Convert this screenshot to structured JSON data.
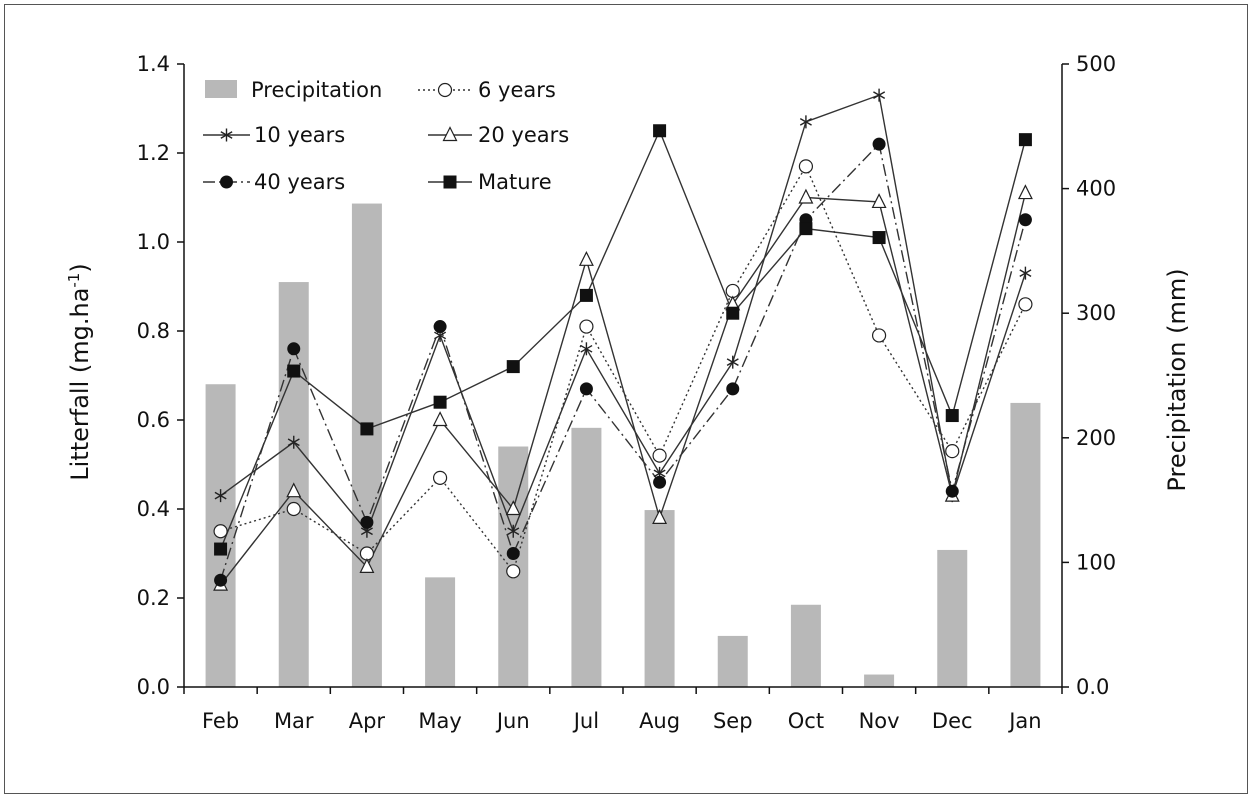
{
  "chart_data": {
    "type": "bar+line",
    "categories": [
      "Feb",
      "Mar",
      "Apr",
      "May",
      "Jun",
      "Jul",
      "Aug",
      "Sep",
      "Oct",
      "Nov",
      "Dec",
      "Jan"
    ],
    "bar_series": {
      "name": "Precipitation",
      "axis": "right",
      "color": "#b8b8b8",
      "values": [
        243,
        325,
        388,
        88,
        193,
        208,
        142,
        41,
        66,
        10,
        110,
        228
      ]
    },
    "series": [
      {
        "name": "6 years",
        "marker": "open-circle",
        "dash": "2,3",
        "values": [
          0.35,
          0.4,
          0.3,
          0.47,
          0.26,
          0.81,
          0.52,
          0.89,
          1.17,
          0.79,
          0.53,
          0.86
        ]
      },
      {
        "name": "10 years",
        "marker": "asterisk",
        "dash": "",
        "values": [
          0.43,
          0.55,
          0.35,
          0.79,
          0.35,
          0.76,
          0.48,
          0.73,
          1.27,
          1.33,
          0.43,
          0.93
        ]
      },
      {
        "name": "20 years",
        "marker": "open-triangle",
        "dash": "",
        "values": [
          0.23,
          0.44,
          0.27,
          0.6,
          0.4,
          0.96,
          0.38,
          0.86,
          1.1,
          1.09,
          0.43,
          1.11
        ]
      },
      {
        "name": "40 years",
        "marker": "filled-circle",
        "dash": "12,4,2,4",
        "values": [
          0.24,
          0.76,
          0.37,
          0.81,
          0.3,
          0.67,
          0.46,
          0.67,
          1.05,
          1.22,
          0.44,
          1.05
        ]
      },
      {
        "name": "Mature",
        "marker": "filled-square",
        "dash": "",
        "values": [
          0.31,
          0.71,
          0.58,
          0.64,
          0.72,
          0.88,
          1.25,
          0.84,
          1.03,
          1.01,
          0.61,
          1.23
        ]
      }
    ],
    "ylabel_left": "Litterfall (mg.ha-1)",
    "ylabel_left_base": "Litterfall (mg.ha",
    "ylabel_left_sup": "-1",
    "ylabel_left_end": ")",
    "ylabel_right": "Precipitation (mm)",
    "ylim_left": [
      0,
      1.4
    ],
    "ylim_right": [
      0,
      500
    ],
    "yticks_left": [
      "0.0",
      "0.2",
      "0.4",
      "0.6",
      "0.8",
      "1.0",
      "1.2",
      "1.4"
    ],
    "yticks_right": [
      "0.0",
      "100",
      "200",
      "300",
      "400",
      "500"
    ],
    "grid": false,
    "legend_placement": "top-left"
  }
}
